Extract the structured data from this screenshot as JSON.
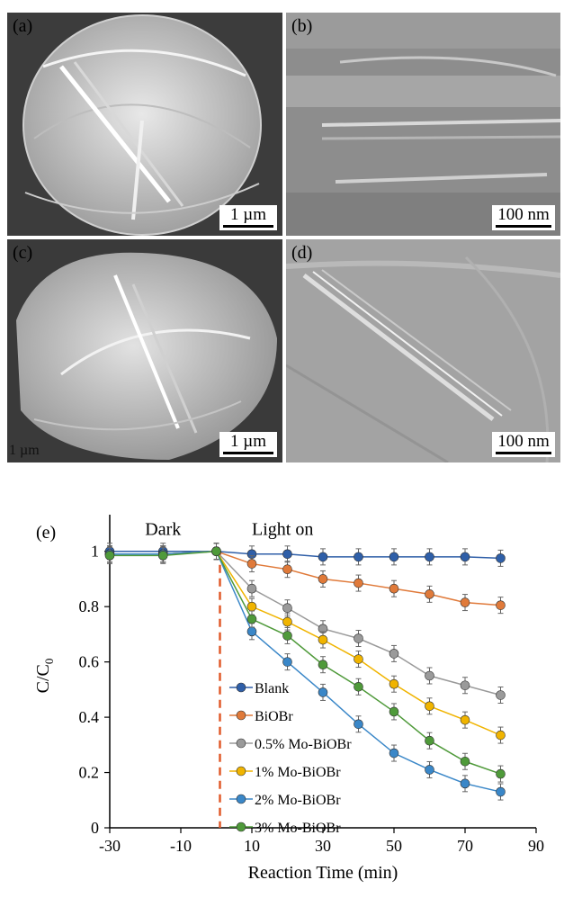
{
  "panels": [
    {
      "label": "(a)",
      "scale": "1 µm"
    },
    {
      "label": "(b)",
      "scale": "100 nm"
    },
    {
      "label": "(c)",
      "scale": "1 µm",
      "stray_text": "1 µm"
    },
    {
      "label": "(d)",
      "scale": "100 nm"
    }
  ],
  "colors": {
    "dark_line": "#e15a2a",
    "blank": "#2f5fa8",
    "bioBr": "#e07a3a",
    "mo05": "#9a9a9a",
    "mo1": "#f0b400",
    "mo2": "#3a87c8",
    "mo3": "#4f9a3a"
  },
  "chart_data": {
    "type": "line",
    "panel_label": "(e)",
    "xlabel": "Reaction Time (min)",
    "ylabel": "C/C",
    "ylabel_sub": "0",
    "xlim": [
      -30,
      90
    ],
    "ylim": [
      0,
      1.1
    ],
    "xticks": [
      -30,
      -10,
      10,
      30,
      50,
      70,
      90
    ],
    "yticks": [
      0,
      0.2,
      0.4,
      0.6,
      0.8,
      1
    ],
    "ytick_labels": [
      "0",
      "0.2",
      "0.4",
      "0.6",
      "0.8",
      "1"
    ],
    "annotations": [
      {
        "text": "Dark",
        "x": -15,
        "y": 1.06
      },
      {
        "text": "Light on",
        "x": 10,
        "y": 1.06
      }
    ],
    "dark_line_x": 0,
    "legend_position": "lower-middle",
    "series": [
      {
        "name": "Blank",
        "color": "#2f5fa8",
        "x": [
          -30,
          -15,
          0,
          10,
          20,
          30,
          40,
          50,
          60,
          70,
          80
        ],
        "y": [
          1.0,
          1.0,
          1.0,
          0.99,
          0.99,
          0.98,
          0.98,
          0.98,
          0.98,
          0.98,
          0.975
        ]
      },
      {
        "name": "BiOBr",
        "color": "#e07a3a",
        "x": [
          -30,
          -15,
          0,
          10,
          20,
          30,
          40,
          50,
          60,
          70,
          80
        ],
        "y": [
          0.99,
          0.99,
          1.0,
          0.955,
          0.935,
          0.9,
          0.885,
          0.865,
          0.845,
          0.815,
          0.805
        ]
      },
      {
        "name": "0.5% Mo-BiOBr",
        "color": "#9a9a9a",
        "x": [
          -30,
          -15,
          0,
          10,
          20,
          30,
          40,
          50,
          60,
          70,
          80
        ],
        "y": [
          0.99,
          0.99,
          1.0,
          0.865,
          0.795,
          0.72,
          0.685,
          0.63,
          0.55,
          0.515,
          0.48
        ]
      },
      {
        "name": "1% Mo-BiOBr",
        "color": "#f0b400",
        "x": [
          -30,
          -15,
          0,
          10,
          20,
          30,
          40,
          50,
          60,
          70,
          80
        ],
        "y": [
          0.99,
          0.99,
          1.0,
          0.8,
          0.745,
          0.68,
          0.61,
          0.52,
          0.44,
          0.39,
          0.335
        ]
      },
      {
        "name": "2% Mo-BiOBr",
        "color": "#3a87c8",
        "x": [
          -30,
          -15,
          0,
          10,
          20,
          30,
          40,
          50,
          60,
          70,
          80
        ],
        "y": [
          0.99,
          0.99,
          1.0,
          0.71,
          0.6,
          0.49,
          0.375,
          0.27,
          0.21,
          0.16,
          0.13
        ]
      },
      {
        "name": "3% Mo-BiOBr",
        "color": "#4f9a3a",
        "x": [
          -30,
          -15,
          0,
          10,
          20,
          30,
          40,
          50,
          60,
          70,
          80
        ],
        "y": [
          0.985,
          0.985,
          1.0,
          0.755,
          0.695,
          0.59,
          0.51,
          0.42,
          0.315,
          0.24,
          0.195
        ]
      }
    ]
  }
}
